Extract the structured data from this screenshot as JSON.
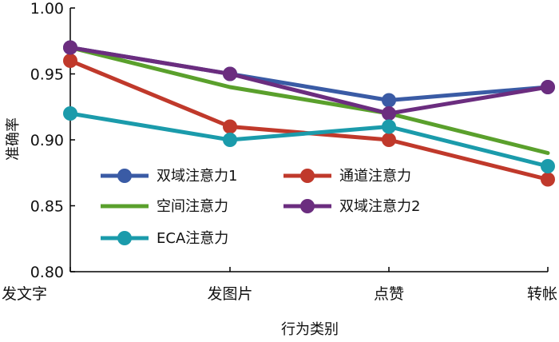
{
  "chart_data": {
    "type": "line",
    "title": "",
    "xlabel": "行为类别",
    "ylabel": "准确率",
    "categories": [
      "发文字",
      "发图片",
      "点赞",
      "转帐"
    ],
    "ylim": [
      0.8,
      1.0
    ],
    "yticks": [
      "0.80",
      "0.85",
      "0.90",
      "0.95",
      "1.00"
    ],
    "grid": false,
    "legend_position": "bottom-left",
    "series": [
      {
        "name": "双域注意力1",
        "color": "#3a5ba5",
        "markers": true,
        "values": [
          0.97,
          0.95,
          0.93,
          0.94
        ]
      },
      {
        "name": "通道注意力",
        "color": "#c0392b",
        "markers": true,
        "values": [
          0.96,
          0.91,
          0.9,
          0.87
        ]
      },
      {
        "name": "空间注意力",
        "color": "#5aa02c",
        "markers": false,
        "values": [
          0.97,
          0.94,
          0.92,
          0.89
        ]
      },
      {
        "name": "双域注意力2",
        "color": "#6b2d7f",
        "markers": true,
        "values": [
          0.97,
          0.95,
          0.92,
          0.94
        ]
      },
      {
        "name": "ECA注意力",
        "color": "#1b9bab",
        "markers": true,
        "values": [
          0.92,
          0.9,
          0.91,
          0.88
        ]
      }
    ]
  }
}
